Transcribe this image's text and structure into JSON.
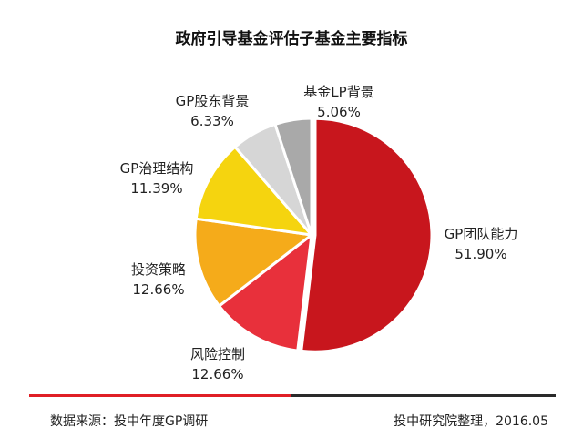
{
  "chart_data": {
    "type": "pie",
    "title": "政府引导基金评估子基金主要指标",
    "slices": [
      {
        "label": "GP团队能力",
        "value": 51.9,
        "value_label": "51.90%",
        "color": "#c8161d"
      },
      {
        "label": "风险控制",
        "value": 12.66,
        "value_label": "12.66%",
        "color": "#e8303b"
      },
      {
        "label": "投资策略",
        "value": 12.66,
        "value_label": "12.66%",
        "color": "#f5ab1a"
      },
      {
        "label": "GP治理结构",
        "value": 11.39,
        "value_label": "11.39%",
        "color": "#f5d40f"
      },
      {
        "label": "GP股东背景",
        "value": 6.33,
        "value_label": "6.33%",
        "color": "#d6d6d6"
      },
      {
        "label": "基金LP背景",
        "value": 5.06,
        "value_label": "5.06%",
        "color": "#a9a9a9"
      }
    ]
  },
  "footer": {
    "source": "数据来源：投中年度GP调研",
    "credit": "投中研究院整理，2016.05"
  }
}
